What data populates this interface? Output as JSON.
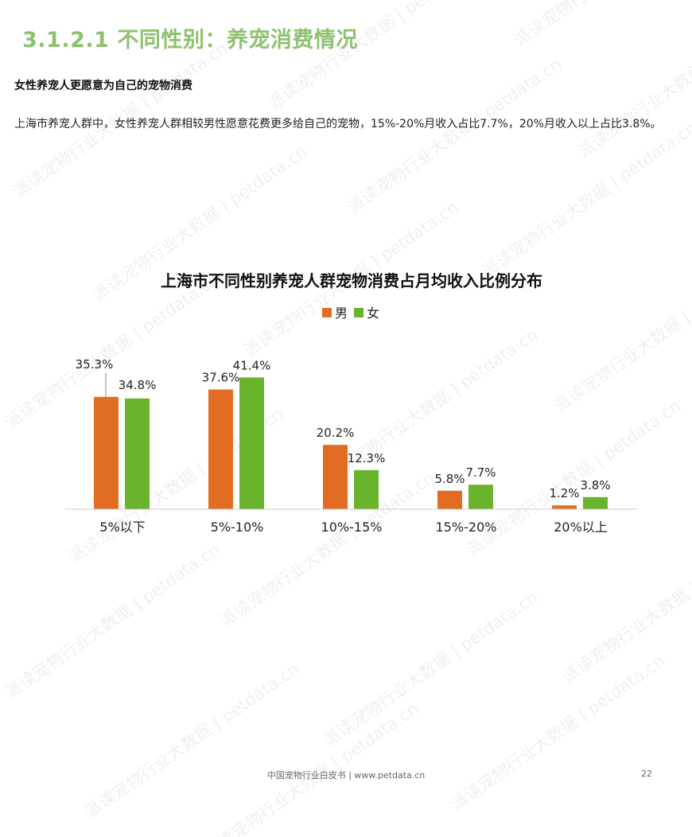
{
  "heading": "3.1.2.1 不同性别：养宠消费情况",
  "subheading": "女性养宠人更愿意为自己的宠物消费",
  "body_text": "上海市养宠人群中，女性养宠人群相较男性愿意花费更多给自己的宠物，15%-20%月收入占比7.7%，20%月收入以上占比3.8%。",
  "watermark_text": "派读宠物行业大数据 | petdata.cn",
  "footer_text": "中国宠物行业白皮书 | www.petdata.cn",
  "page_number": "22",
  "colors": {
    "heading": "#8dc26f",
    "male": "#e26c22",
    "female": "#6ab42d"
  },
  "chart_data": {
    "type": "bar",
    "title": "上海市不同性别养宠人群宠物消费占月均收入比例分布",
    "legend_position": "top-center",
    "grid": false,
    "categories": [
      "5%以下",
      "5%-10%",
      "10%-15%",
      "15%-20%",
      "20%以上"
    ],
    "series": [
      {
        "name": "男",
        "values": [
          35.3,
          37.6,
          20.2,
          5.8,
          1.2
        ],
        "labels": [
          "35.3%",
          "37.6%",
          "20.2%",
          "5.8%",
          "1.2%"
        ]
      },
      {
        "name": "女",
        "values": [
          34.8,
          41.4,
          12.3,
          7.7,
          3.8
        ],
        "labels": [
          "34.8%",
          "41.4%",
          "12.3%",
          "7.7%",
          "3.8%"
        ]
      }
    ],
    "ylim": [
      0,
      45
    ],
    "unit": "%"
  }
}
